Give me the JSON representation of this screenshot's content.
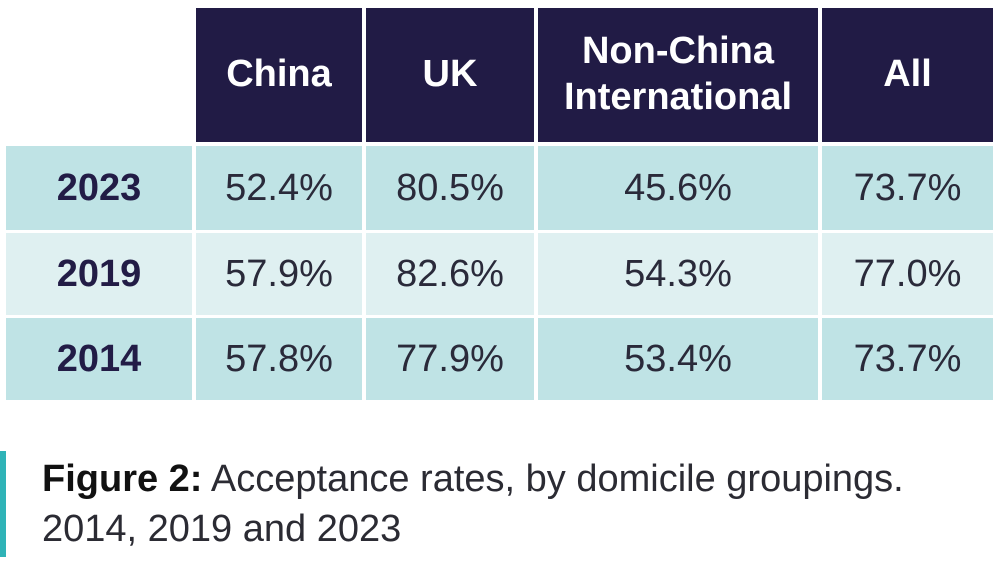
{
  "chart_data": {
    "type": "table",
    "columns": [
      "China",
      "UK",
      "Non-China International",
      "All"
    ],
    "rows": [
      {
        "year": "2023",
        "values": [
          "52.4%",
          "80.5%",
          "45.6%",
          "73.7%"
        ]
      },
      {
        "year": "2019",
        "values": [
          "57.9%",
          "82.6%",
          "54.3%",
          "77.0%"
        ]
      },
      {
        "year": "2014",
        "values": [
          "57.8%",
          "77.9%",
          "53.4%",
          "73.7%"
        ]
      }
    ],
    "caption_label": "Figure 2:",
    "caption_text": " Acceptance rates, by domicile groupings. 2014, 2019 and 2023"
  },
  "colors": {
    "header_bg": "#211b45",
    "row_dark": "#bfe3e5",
    "row_light": "#dff0f1",
    "accent_bar": "#2fb3b7"
  }
}
